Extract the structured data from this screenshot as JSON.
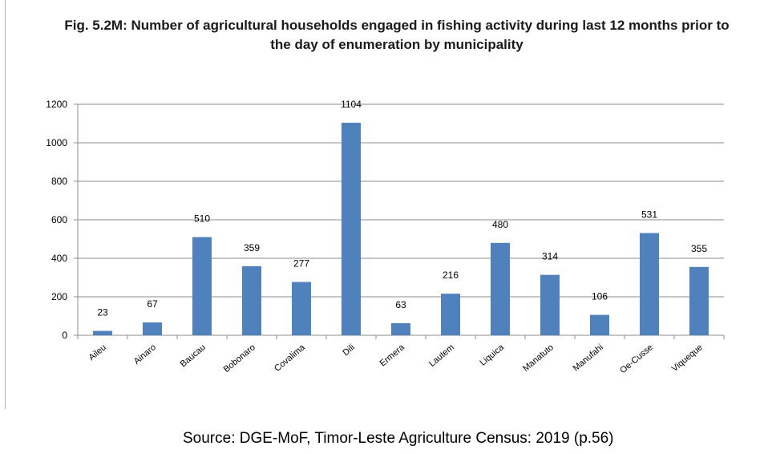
{
  "chart_data": {
    "type": "bar",
    "title": "Fig. 5.2M: Number of agricultural households engaged in fishing activity during last 12 months prior  to the day of enumeration by municipality",
    "categories": [
      "Aileu",
      "Ainaro",
      "Baucau",
      "Bobonaro",
      "Covalima",
      "Dili",
      "Ermera",
      "Lautem",
      "Liquica",
      "Manatuto",
      "Manufahi",
      "Oe-Cusse",
      "Viqueque"
    ],
    "values": [
      23,
      67,
      510,
      359,
      277,
      1104,
      63,
      216,
      480,
      314,
      106,
      531,
      355
    ],
    "ylim": [
      0,
      1200
    ],
    "yticks": [
      0,
      200,
      400,
      600,
      800,
      1000,
      1200
    ],
    "grid": true,
    "legend": "none",
    "bar_color": "#4f81bd"
  },
  "source": "Source: DGE-MoF, Timor-Leste Agriculture Census: 2019 (p.56)"
}
